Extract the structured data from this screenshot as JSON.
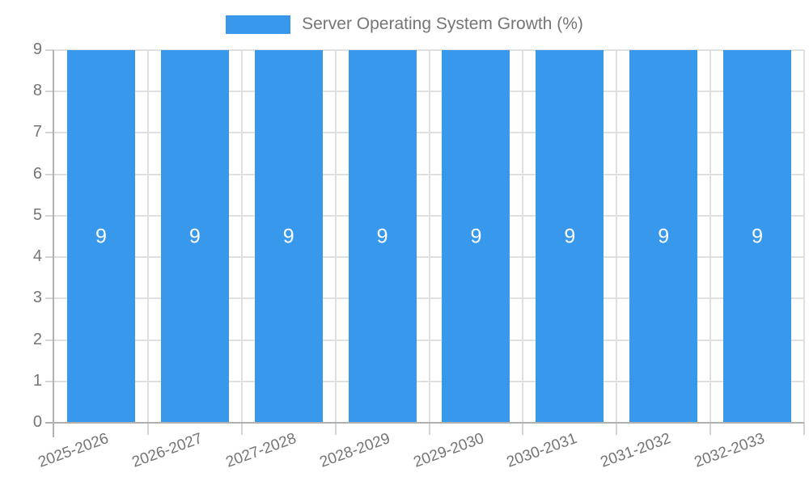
{
  "legend": {
    "label": "Server Operating System Growth (%)"
  },
  "chart_data": {
    "type": "bar",
    "title": "Server Operating System Growth (%)",
    "categories": [
      "2025-2026",
      "2026-2027",
      "2027-2028",
      "2028-2029",
      "2029-2030",
      "2030-2031",
      "2031-2032",
      "2032-2033"
    ],
    "series": [
      {
        "name": "Server Operating System Growth (%)",
        "values": [
          9,
          9,
          9,
          9,
          9,
          9,
          9,
          9
        ]
      }
    ],
    "bar_labels": [
      "9",
      "9",
      "9",
      "9",
      "9",
      "9",
      "9",
      "9"
    ],
    "xlabel": "",
    "ylabel": "",
    "ylim": [
      0,
      9
    ],
    "yticks": [
      0,
      1,
      2,
      3,
      4,
      5,
      6,
      7,
      8,
      9
    ],
    "grid": "both",
    "legend_position": "top",
    "x_label_rotation_deg": -20,
    "colors": {
      "bar": "#3898EC",
      "bar_label_text": "#ffffff",
      "axis_text": "#757575",
      "axis_line": "#b0b0b0",
      "gridline": "#e0e0e0",
      "tick": "#d4d4d4",
      "background": "#ffffff"
    }
  }
}
